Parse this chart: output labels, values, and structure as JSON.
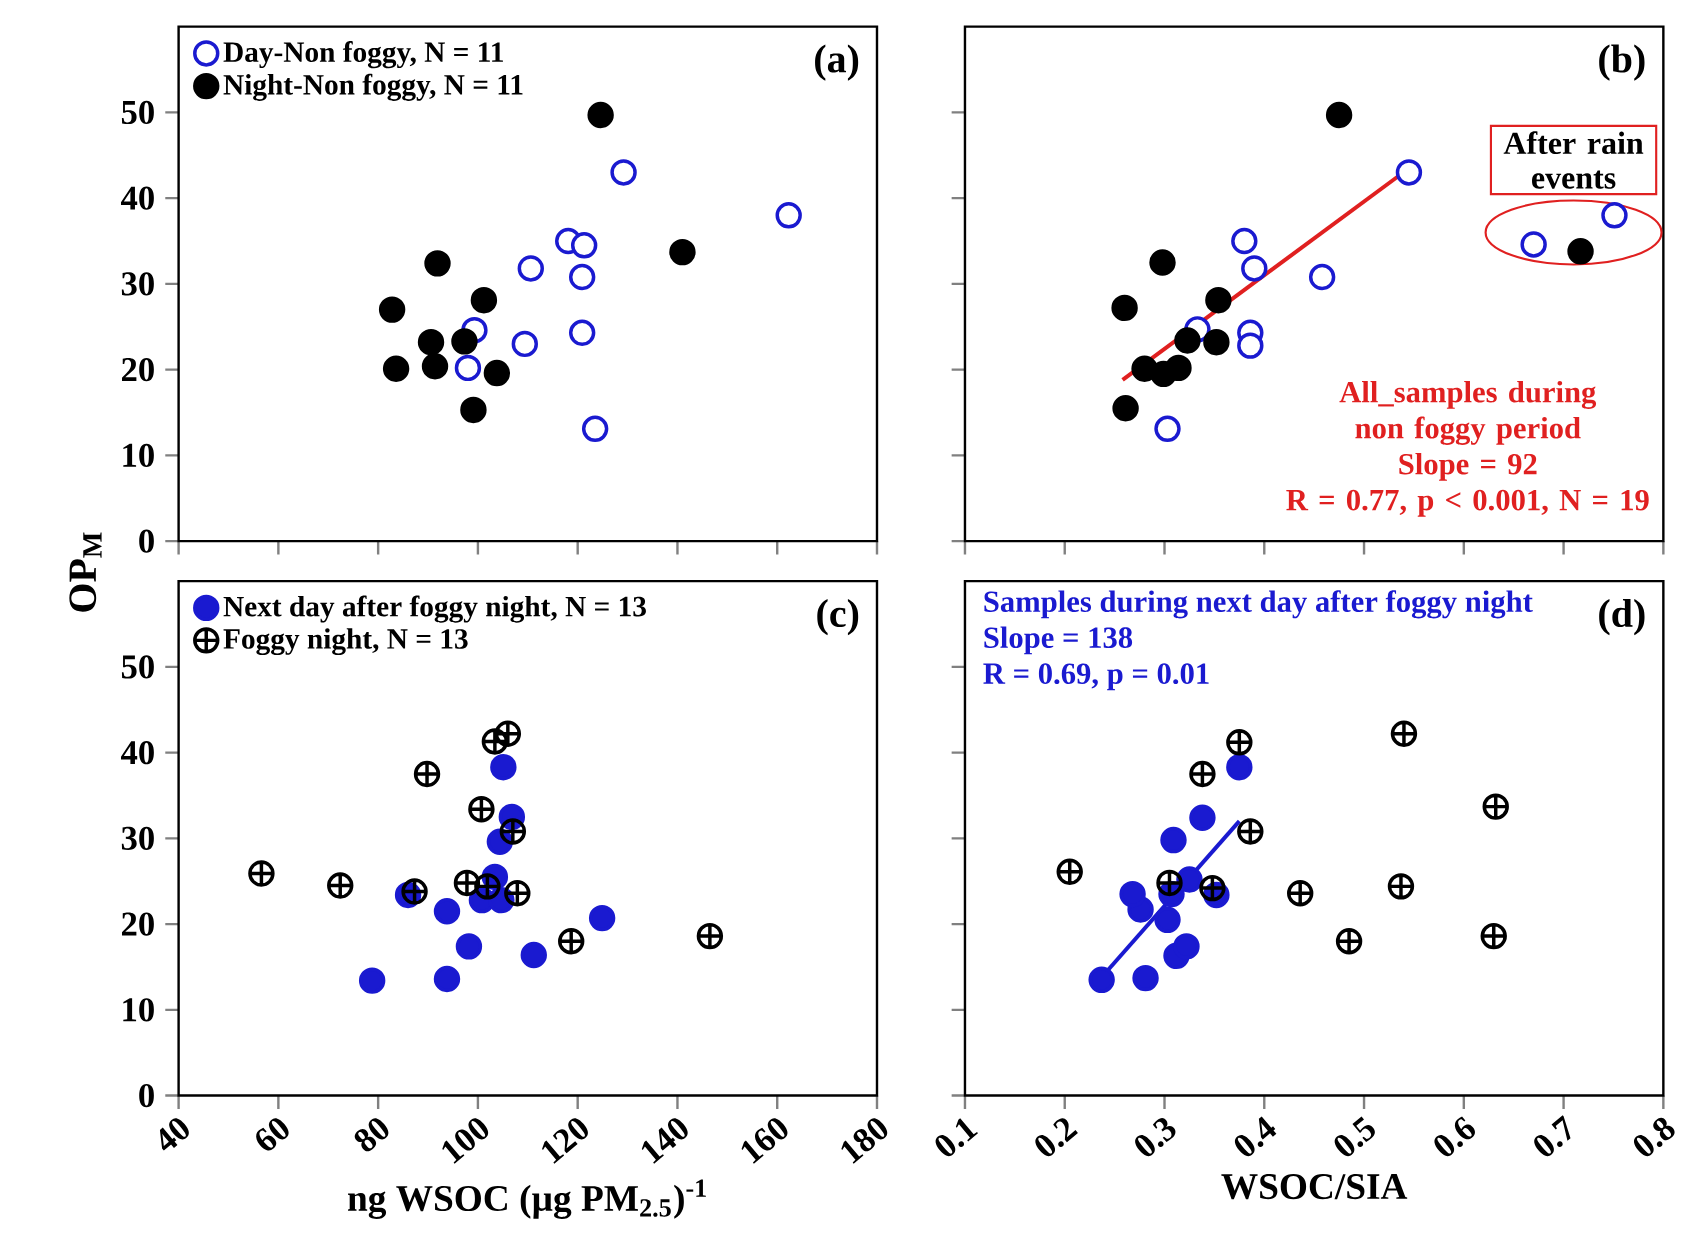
{
  "chart_data": [
    {
      "type": "scatter",
      "ylabel": "OP$_{M}$",
      "xlim": [
        40,
        180
      ],
      "xticks": [
        40,
        60,
        80,
        100,
        120,
        140,
        160,
        180
      ],
      "ylim": [
        0,
        60
      ],
      "yticks": [
        0,
        10,
        20,
        30,
        40,
        50
      ],
      "tick_labels": "y",
      "legend": "top left",
      "annotations": [
        "(a)"
      ],
      "series": [
        {
          "name": "Day-Non foggy, N = 11",
          "color": "#1a1ad0",
          "marker": "circle",
          "x": [
            99.3,
            98,
            109.4,
            110.6,
            118.1,
            121.3,
            120.9,
            120.9,
            123.5,
            129.2,
            162.3
          ],
          "values": [
            24.6,
            20.2,
            23.0,
            31.8,
            35.0,
            34.5,
            30.8,
            24.3,
            13.1,
            43.0,
            38.0
          ]
        },
        {
          "name": "Night-Non foggy, N = 11",
          "color": "#000000",
          "marker": "circle",
          "x": [
            82.8,
            83.6,
            91.9,
            90.6,
            91.4,
            97.3,
            101.2,
            103.8,
            99.1,
            124.6,
            141.0
          ],
          "values": [
            27.0,
            20.1,
            32.4,
            23.2,
            20.4,
            23.3,
            28.1,
            19.6,
            15.3,
            49.7,
            33.7
          ]
        }
      ]
    },
    {
      "type": "scatter",
      "xlim": [
        0.1,
        0.8
      ],
      "xticks": [
        0.1,
        0.2,
        0.3,
        0.4,
        0.5,
        0.6,
        0.7,
        0.8
      ],
      "ylim": [
        0,
        60
      ],
      "yticks": [
        0,
        10,
        20,
        30,
        40,
        50
      ],
      "tick_labels": false,
      "annotations": [
        "(b)",
        {
          "text": "After rain events",
          "x": 0.71,
          "y": 36
        },
        "All_samples during non foggy period",
        "Slope = 92",
        "R = 0.77, p < 0.001, N = 19"
      ],
      "series": [
        {
          "color": "#1a1ad0",
          "marker": "circle",
          "x": [
            0.303,
            0.333,
            0.386,
            0.386,
            0.38,
            0.39,
            0.458,
            0.545,
            0.67,
            0.751
          ],
          "values": [
            13.1,
            24.7,
            24.3,
            22.8,
            35.0,
            31.8,
            30.8,
            43.0,
            34.6,
            38.0
          ]
        },
        {
          "color": "#000000",
          "marker": "circle",
          "x": [
            0.26,
            0.261,
            0.298,
            0.28,
            0.299,
            0.314,
            0.323,
            0.352,
            0.354,
            0.475,
            0.717
          ],
          "values": [
            27.2,
            15.5,
            32.5,
            20.1,
            19.5,
            20.2,
            23.4,
            23.2,
            28.1,
            49.7,
            33.8
          ]
        },
        {
          "type": "line",
          "color": "#e02020",
          "x": [
            0.258,
            0.536
          ],
          "values": [
            18.8,
            42.7
          ]
        }
      ]
    },
    {
      "type": "scatter",
      "xlabel": "ng WSOC (µg PM$_{2.5}$)$^{-1}$",
      "xlim": [
        40,
        180
      ],
      "xticks": [
        40,
        60,
        80,
        100,
        120,
        140,
        160,
        180
      ],
      "ylim": [
        0,
        60
      ],
      "yticks": [
        0,
        10,
        20,
        30,
        40,
        50
      ],
      "legend": "top left",
      "annotations": [
        "(c)"
      ],
      "series": [
        {
          "name": "Next day after foggy night, N = 13",
          "color": "#1a1ad0",
          "marker": "circle",
          "x": [
            78.8,
            93.8,
            98.2,
            111.2,
            124.9,
            93.8,
            86.0,
            100.8,
            103.4,
            104.4,
            106.8,
            105.1,
            104.7
          ],
          "values": [
            13.4,
            13.6,
            17.4,
            16.4,
            20.7,
            21.5,
            23.4,
            22.8,
            25.5,
            29.6,
            32.5,
            38.3,
            22.8
          ]
        },
        {
          "name": "Foggy night, N = 13",
          "color": "#000000",
          "marker": "cross",
          "x": [
            56.6,
            72.4,
            87.3,
            89.8,
            97.8,
            100.7,
            101.9,
            103.4,
            106.0,
            107.0,
            107.9,
            118.7,
            146.5
          ],
          "values": [
            25.9,
            24.5,
            23.8,
            37.5,
            24.8,
            33.4,
            24.4,
            41.3,
            42.2,
            30.8,
            23.6,
            18.0,
            18.6
          ]
        }
      ]
    },
    {
      "type": "scatter",
      "xlabel": "WSOC/SIA",
      "xlim": [
        0.1,
        0.8
      ],
      "xticks": [
        0.1,
        0.2,
        0.3,
        0.4,
        0.5,
        0.6,
        0.7,
        0.8
      ],
      "ylim": [
        0,
        60
      ],
      "yticks": [
        0,
        10,
        20,
        30,
        40,
        50
      ],
      "tick_labels": "x",
      "annotations": [
        "(d)",
        "Samples during next day after foggy night",
        "Slope = 138",
        "R = 0.69, p = 0.01"
      ],
      "series": [
        {
          "color": "#1a1ad0",
          "marker": "circle",
          "x": [
            0.237,
            0.281,
            0.312,
            0.322,
            0.303,
            0.276,
            0.268,
            0.307,
            0.325,
            0.352,
            0.309,
            0.338,
            0.375
          ],
          "values": [
            13.5,
            13.7,
            16.3,
            17.4,
            20.5,
            21.7,
            23.5,
            23.5,
            25.2,
            23.4,
            29.8,
            32.4,
            38.3
          ]
        },
        {
          "color": "#000000",
          "marker": "cross",
          "x": [
            0.205,
            0.305,
            0.348,
            0.338,
            0.375,
            0.386,
            0.436,
            0.485,
            0.537,
            0.54,
            0.63,
            0.632
          ],
          "values": [
            26.1,
            24.8,
            24.2,
            37.5,
            41.2,
            30.8,
            23.6,
            18.0,
            24.4,
            42.2,
            18.6,
            33.7
          ]
        },
        {
          "type": "line",
          "color": "#1a1ad0",
          "x": [
            0.237,
            0.375
          ],
          "values": [
            13.8,
            32.0
          ]
        }
      ]
    }
  ]
}
